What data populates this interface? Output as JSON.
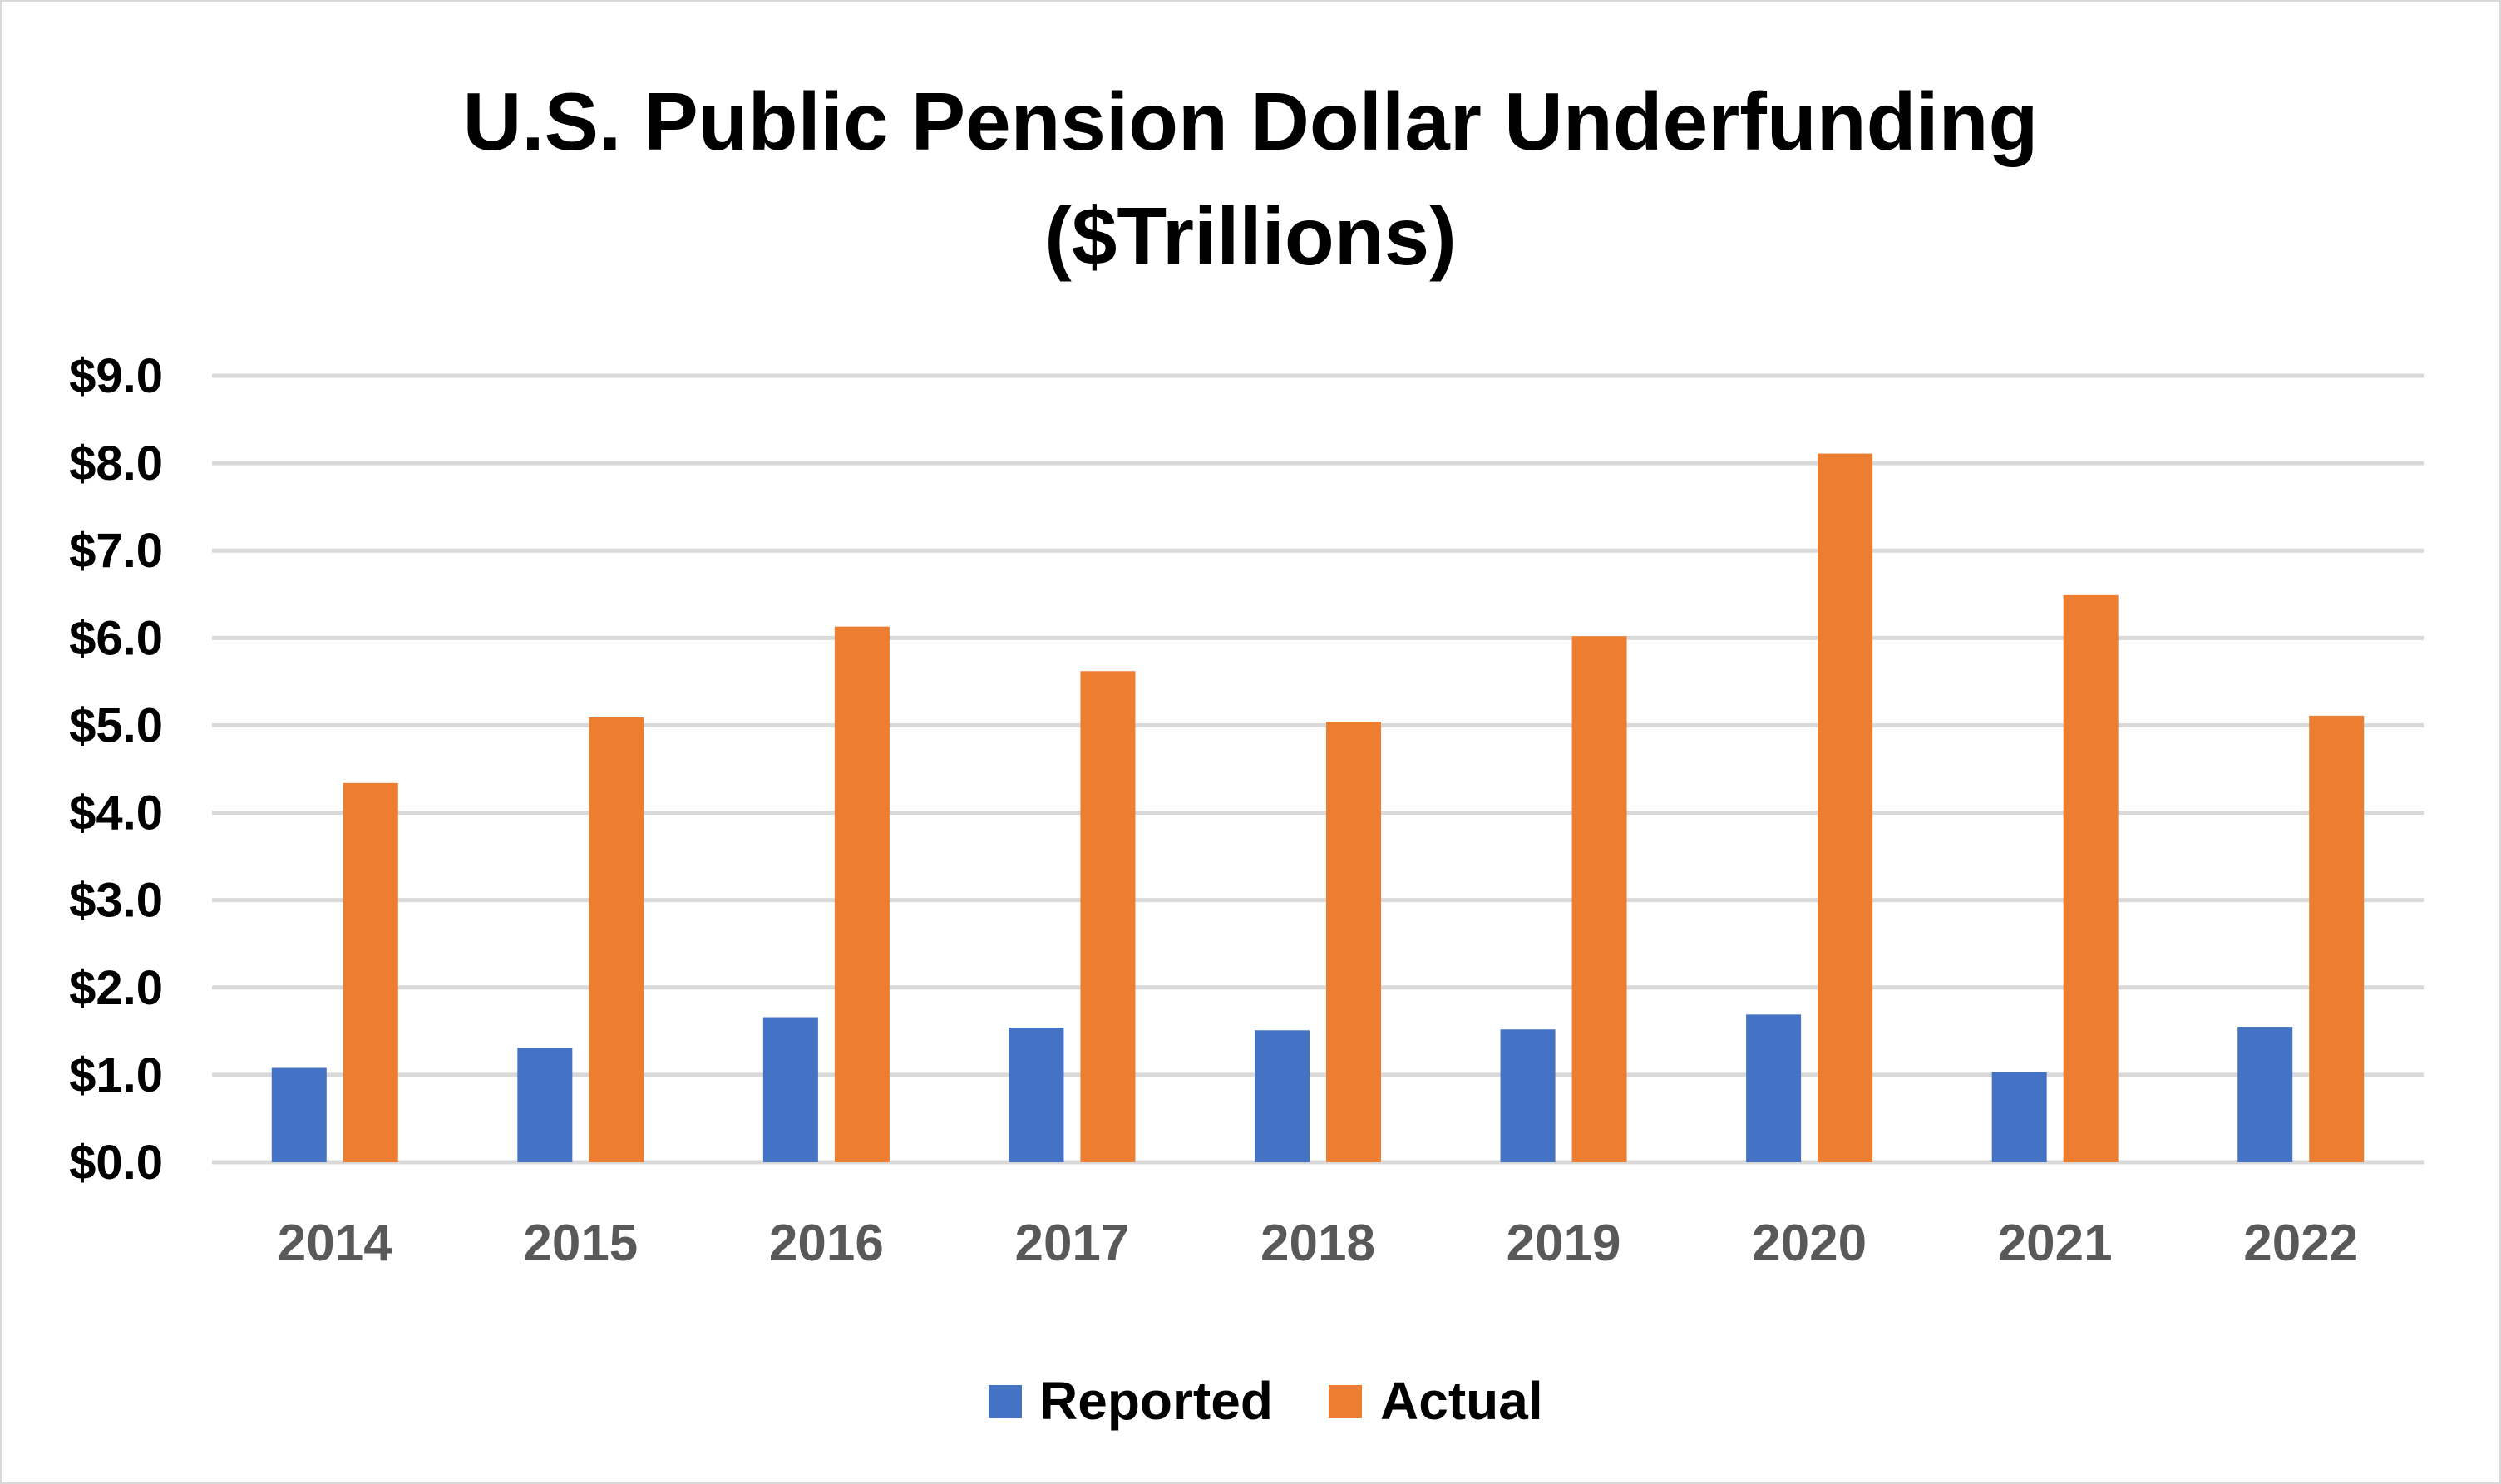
{
  "chart_data": {
    "type": "bar",
    "title_lines": [
      "U.S. Public Pension Dollar Underfunding",
      "($Trillions)"
    ],
    "categories": [
      "2014",
      "2015",
      "2016",
      "2017",
      "2018",
      "2019",
      "2020",
      "2021",
      "2022"
    ],
    "series": [
      {
        "name": "Reported",
        "color": "#4472c4",
        "values": [
          1.08,
          1.31,
          1.66,
          1.54,
          1.51,
          1.52,
          1.69,
          1.03,
          1.55
        ]
      },
      {
        "name": "Actual",
        "color": "#ed7d31",
        "values": [
          4.34,
          5.09,
          6.13,
          5.62,
          5.04,
          6.02,
          8.11,
          6.49,
          5.11
        ]
      }
    ],
    "ylim": [
      0,
      9
    ],
    "yticks": [
      0,
      1,
      2,
      3,
      4,
      5,
      6,
      7,
      8,
      9
    ],
    "ytick_labels": [
      "$0.0",
      "$1.0",
      "$2.0",
      "$3.0",
      "$4.0",
      "$5.0",
      "$6.0",
      "$7.0",
      "$8.0",
      "$9.0"
    ],
    "xlabel": "",
    "ylabel": "",
    "grid": true,
    "legend_position": "bottom-center"
  }
}
